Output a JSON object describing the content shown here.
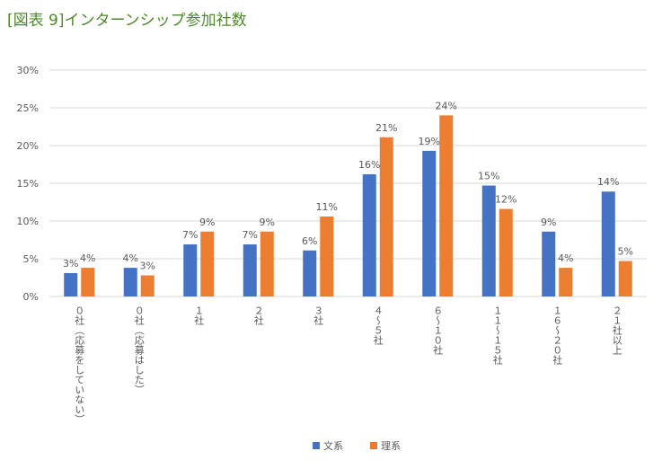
{
  "chart_data": {
    "type": "bar",
    "title": "[図表 9]インターンシップ参加社数",
    "categories": [
      "０社（応募をしていない）",
      "０社（応募はした）",
      "１社",
      "２社",
      "３社",
      "４～５社",
      "６～１０社",
      "１１～１５社",
      "１６～２０社",
      "２１社以上"
    ],
    "series": [
      {
        "name": "文系",
        "color": "#4472c4",
        "values": [
          3.1,
          3.8,
          6.9,
          6.9,
          6.1,
          16.2,
          19.3,
          14.7,
          8.6,
          13.9
        ],
        "value_labels": [
          "3%",
          "4%",
          "7%",
          "7%",
          "6%",
          "16%",
          "19%",
          "15%",
          "9%",
          "14%"
        ]
      },
      {
        "name": "理系",
        "color": "#ed7d31",
        "values": [
          3.8,
          2.8,
          8.6,
          8.6,
          10.6,
          21.1,
          24.0,
          11.6,
          3.8,
          4.7
        ],
        "value_labels": [
          "4%",
          "3%",
          "9%",
          "9%",
          "11%",
          "21%",
          "24%",
          "12%",
          "4%",
          "5%"
        ]
      }
    ],
    "ylim": [
      0,
      30
    ],
    "yticks": [
      {
        "value": 0,
        "label": "0%"
      },
      {
        "value": 5,
        "label": "5%"
      },
      {
        "value": 10,
        "label": "10%"
      },
      {
        "value": 15,
        "label": "15%"
      },
      {
        "value": 20,
        "label": "20%"
      },
      {
        "value": 25,
        "label": "25%"
      },
      {
        "value": 30,
        "label": "30%"
      }
    ],
    "grid": true
  }
}
